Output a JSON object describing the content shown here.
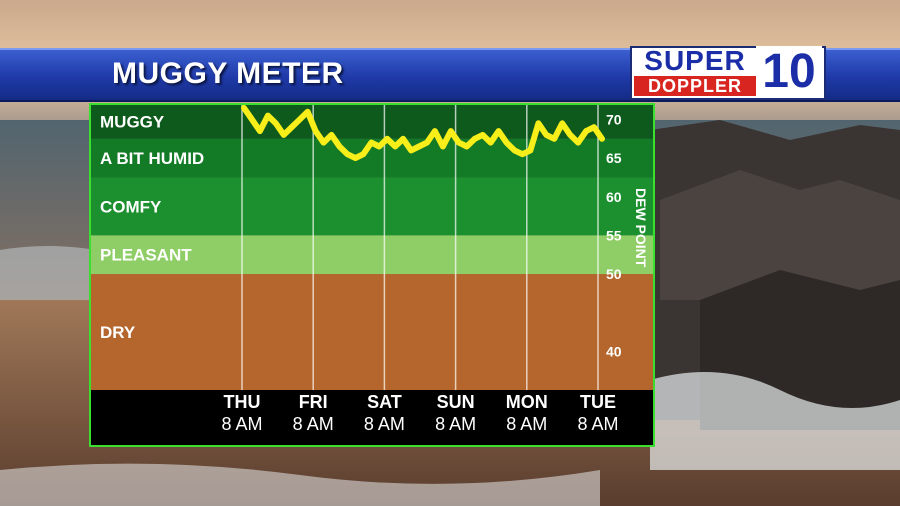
{
  "header": {
    "title": "MUGGY METER"
  },
  "logo": {
    "line1": "SUPER",
    "line2": "DOPPLER",
    "number": "10"
  },
  "chart_data": {
    "type": "line",
    "title": "MUGGY METER",
    "ylabel": "DEW POINT",
    "ylim": [
      35,
      72
    ],
    "yticks": [
      70,
      65,
      60,
      55,
      50,
      40
    ],
    "grid": true,
    "zones": [
      {
        "label": "MUGGY",
        "from": 67.5,
        "to": 72,
        "color": "#0d5a1c"
      },
      {
        "label": "A BIT HUMID",
        "from": 62.5,
        "to": 67.5,
        "color": "#137a26"
      },
      {
        "label": "COMFY",
        "from": 55,
        "to": 62.5,
        "color": "#1c8f2f"
      },
      {
        "label": "PLEASANT",
        "from": 50,
        "to": 55,
        "color": "#8fce67"
      },
      {
        "label": "DRY",
        "from": 35,
        "to": 50,
        "color": "#b4662c"
      }
    ],
    "days": [
      {
        "day": "THU",
        "time": "8 AM"
      },
      {
        "day": "FRI",
        "time": "8 AM"
      },
      {
        "day": "SAT",
        "time": "8 AM"
      },
      {
        "day": "SUN",
        "time": "8 AM"
      },
      {
        "day": "MON",
        "time": "8 AM"
      },
      {
        "day": "TUE",
        "time": "8 AM"
      }
    ],
    "series": [
      {
        "color": "#f7ee1a",
        "values": [
          71.5,
          70,
          68.5,
          70.5,
          69.5,
          68,
          69,
          70,
          71,
          68.5,
          67,
          68,
          66.5,
          65.5,
          65,
          65.5,
          67,
          66.5,
          67.5,
          66.5,
          67.5,
          66,
          66.5,
          67,
          68.5,
          66.5,
          68.5,
          67,
          66.5,
          67.5,
          68,
          67,
          68.5,
          67,
          66,
          65.5,
          66,
          69.5,
          68,
          67.5,
          69.5,
          68,
          67,
          68.5,
          69,
          67.5
        ]
      }
    ]
  }
}
